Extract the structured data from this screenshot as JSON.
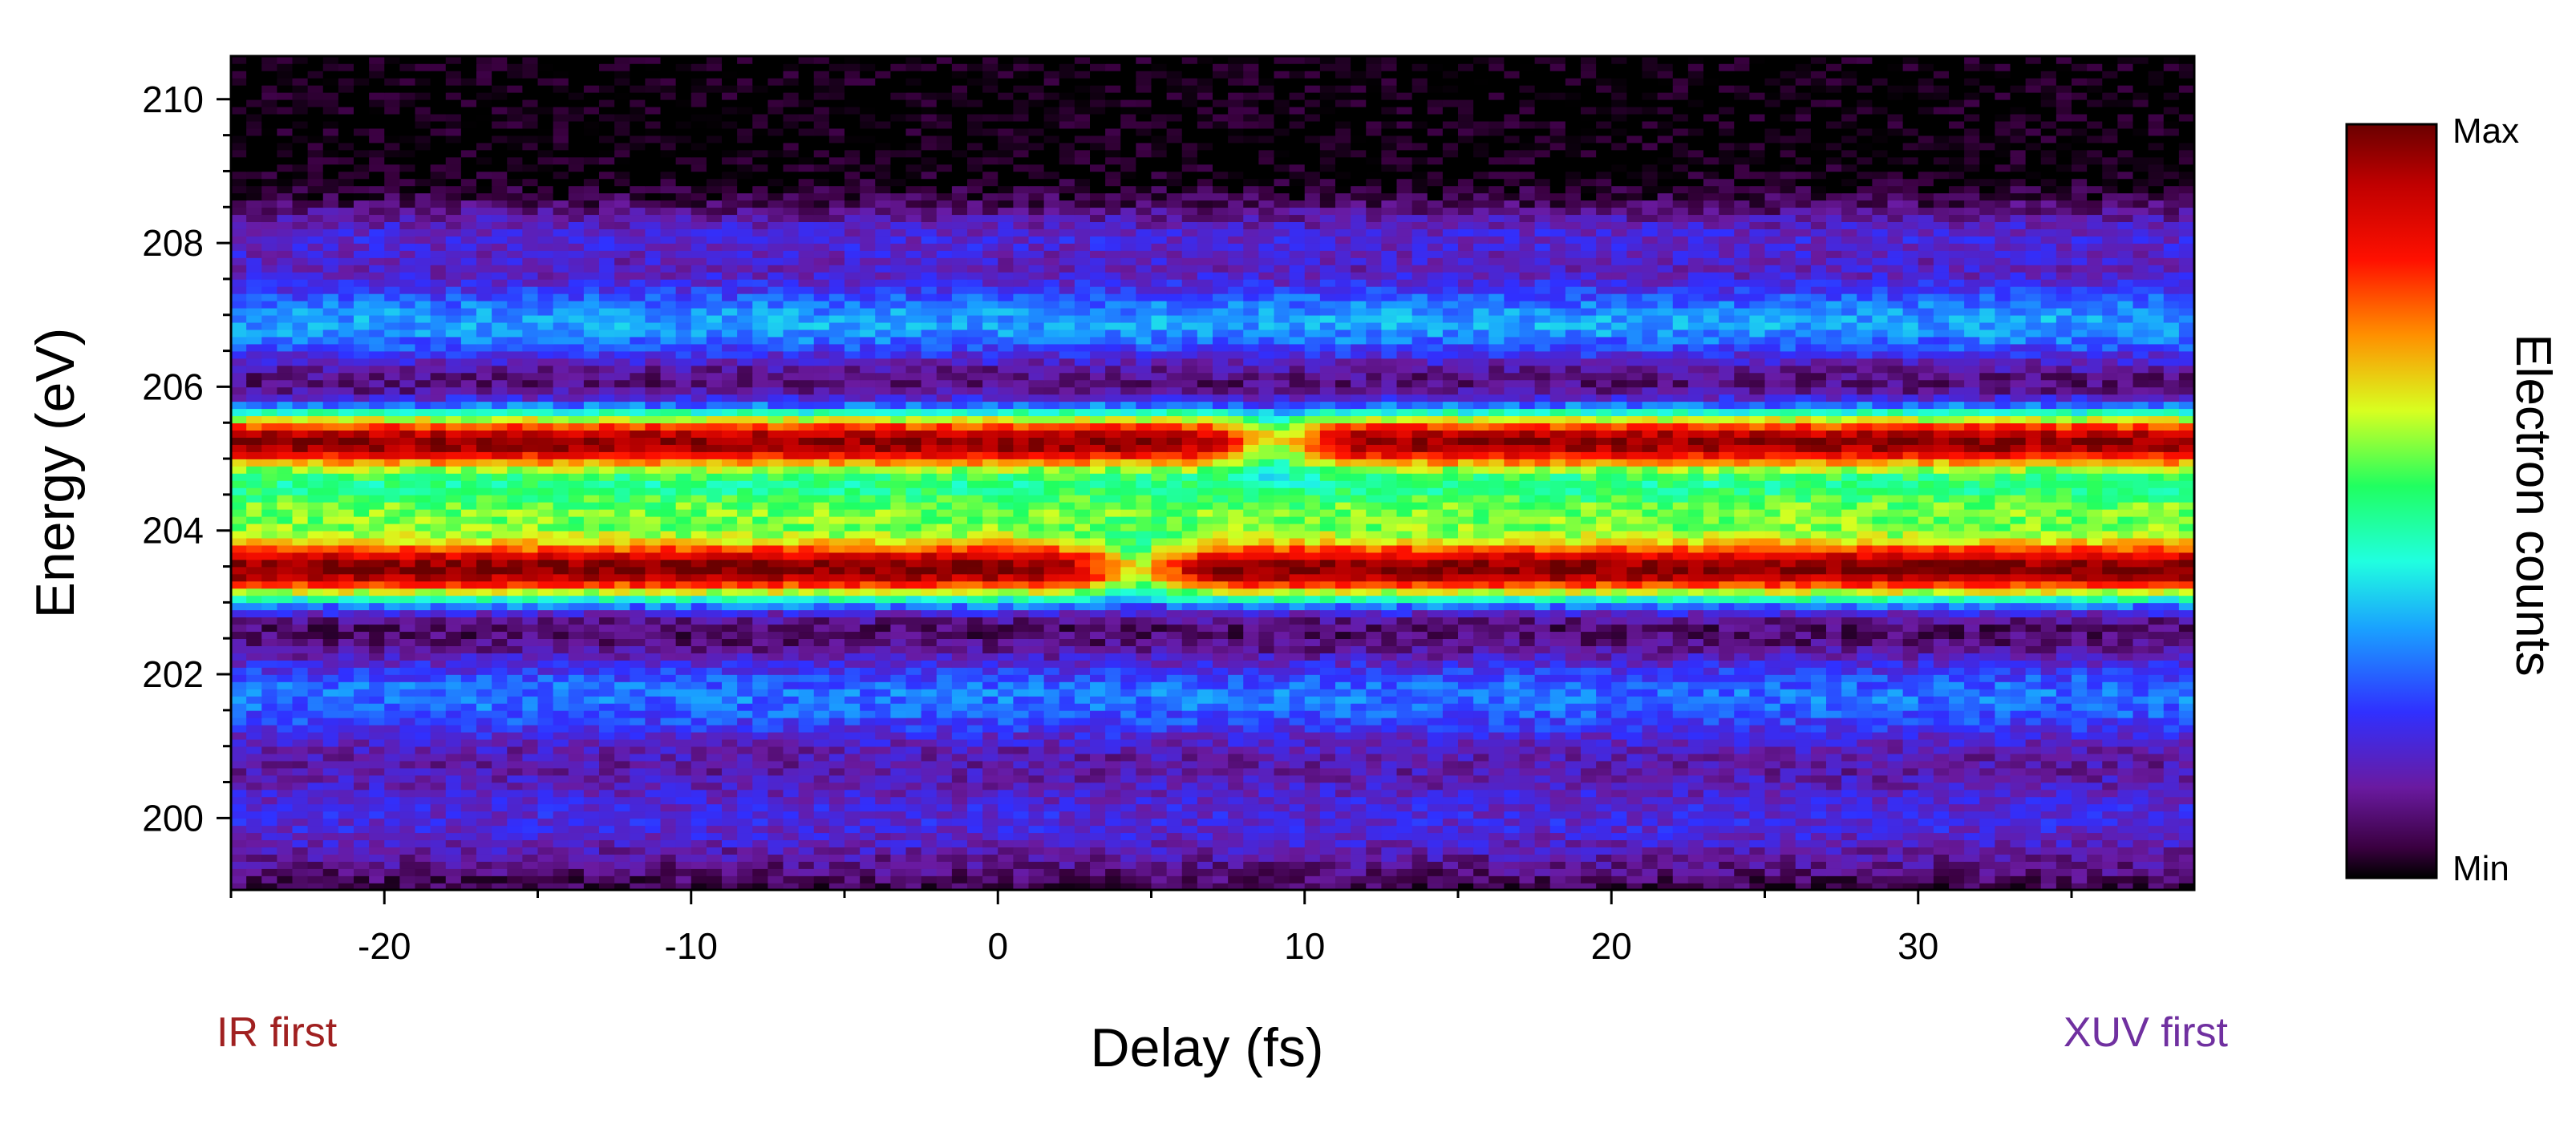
{
  "chart_data": {
    "type": "heatmap",
    "title": "",
    "xlabel": "Delay (fs)",
    "ylabel": "Energy (eV)",
    "xlim": [
      -25,
      39
    ],
    "ylim": [
      199,
      210.6
    ],
    "x_ticks": [
      -20,
      -10,
      0,
      10,
      20,
      30
    ],
    "x_tick_labels": [
      "-20",
      "-10",
      "0",
      "10",
      "20",
      "30"
    ],
    "y_ticks": [
      200,
      202,
      204,
      206,
      208,
      210
    ],
    "y_tick_labels": [
      "200",
      "202",
      "204",
      "206",
      "208",
      "210"
    ],
    "grid": false,
    "colorbar": {
      "label": "Electron counts",
      "max_label": "Max",
      "min_label": "Min",
      "colormap": [
        "#000000",
        "#3a0040",
        "#6a1aa0",
        "#2040ff",
        "#20b0ff",
        "#20ff70",
        "#d0ff20",
        "#ff8000",
        "#ff0000",
        "#8a0000"
      ]
    },
    "annotations": {
      "left": {
        "text": "IR first",
        "color": "#a02020"
      },
      "right": {
        "text": "XUV first",
        "color": "#7030a0"
      }
    },
    "bands": [
      {
        "energy_center": 203.45,
        "width": 0.45,
        "relative_intensity": 1.0
      },
      {
        "energy_center": 205.25,
        "width": 0.45,
        "relative_intensity": 1.0
      },
      {
        "energy_center": 204.3,
        "width": 0.5,
        "relative_intensity": 0.55
      },
      {
        "energy_center": 206.9,
        "width": 0.65,
        "relative_intensity": 0.35
      },
      {
        "energy_center": 201.7,
        "width": 0.7,
        "relative_intensity": 0.3
      },
      {
        "energy_center": 200.0,
        "width": 0.9,
        "relative_intensity": 0.2
      },
      {
        "energy_center": 208.1,
        "width": 0.5,
        "relative_intensity": 0.18
      }
    ],
    "features": [
      {
        "delay": 4.5,
        "energy": 203.5,
        "note": "gap in lower red band"
      },
      {
        "delay": 9.0,
        "energy": 205.2,
        "note": "dip in upper red band"
      }
    ]
  }
}
